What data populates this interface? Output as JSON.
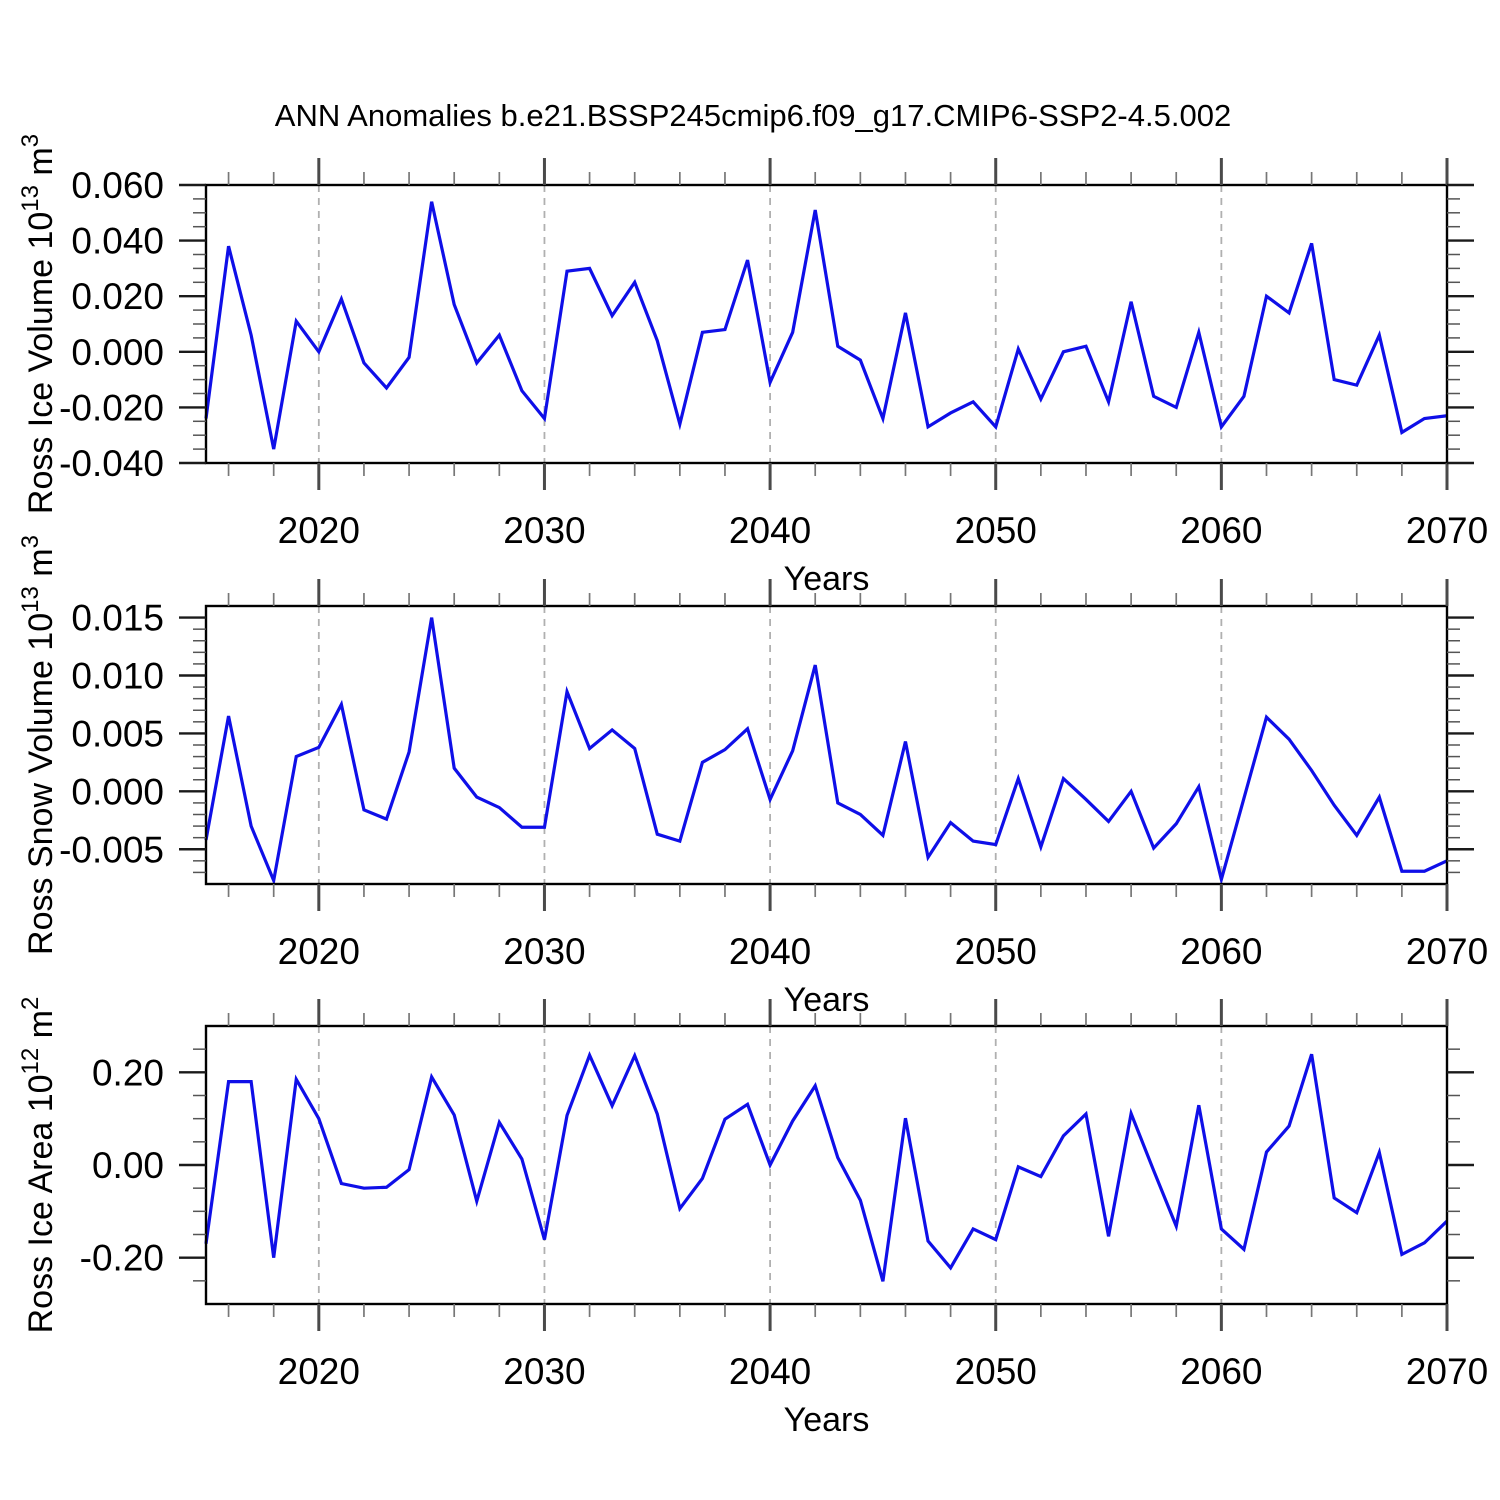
{
  "title": "ANN Anomalies b.e21.BSSP245cmip6.f09_g17.CMIP6-SSP2-4.5.002",
  "colors": {
    "line": "#0f0fe8",
    "frame": "#000000",
    "grid": "#b0b0b0",
    "x_major_tick": "#4a4a4a",
    "x_minor_tick": "#777777",
    "y_major_tick": "#1a1a1a",
    "y_minor_tick": "#555555",
    "text": "#000000"
  },
  "x_axis": {
    "label": "Years",
    "lim": [
      2015,
      2070
    ],
    "major_ticks": [
      2020,
      2030,
      2040,
      2050,
      2060,
      2070
    ],
    "major_tick_labels": [
      "2020",
      "2030",
      "2040",
      "2050",
      "2060",
      "2070"
    ],
    "minor_step_years": 2,
    "dashed_gridlines_at": [
      2020,
      2030,
      2040,
      2050,
      2060
    ]
  },
  "years": [
    2015,
    2016,
    2017,
    2018,
    2019,
    2020,
    2021,
    2022,
    2023,
    2024,
    2025,
    2026,
    2027,
    2028,
    2029,
    2030,
    2031,
    2032,
    2033,
    2034,
    2035,
    2036,
    2037,
    2038,
    2039,
    2040,
    2041,
    2042,
    2043,
    2044,
    2045,
    2046,
    2047,
    2048,
    2049,
    2050,
    2051,
    2052,
    2053,
    2054,
    2055,
    2056,
    2057,
    2058,
    2059,
    2060,
    2061,
    2062,
    2063,
    2064,
    2065,
    2066,
    2067,
    2068,
    2069,
    2070
  ],
  "chart_data": [
    {
      "type": "line",
      "panel": "top",
      "ylabel": "Ross Ice Volume 10^13 m^3",
      "ylabel_segments": [
        {
          "t": "Ross Ice Volume 10"
        },
        {
          "t": "13",
          "sup": true
        },
        {
          "t": " m"
        },
        {
          "t": "3",
          "sup": true
        }
      ],
      "ylim": [
        -0.04,
        0.06
      ],
      "yticks": [
        {
          "v": 0.06,
          "label": "0.060"
        },
        {
          "v": 0.04,
          "label": "0.040"
        },
        {
          "v": 0.02,
          "label": "0.020"
        },
        {
          "v": 0.0,
          "label": "0.000"
        },
        {
          "v": -0.02,
          "label": "-0.020"
        },
        {
          "v": -0.04,
          "label": "-0.040"
        }
      ],
      "y_minor_step": 0.005,
      "values": [
        -0.024,
        0.038,
        0.006,
        -0.035,
        0.011,
        0.0,
        0.019,
        -0.004,
        -0.013,
        -0.002,
        0.054,
        0.017,
        -0.004,
        0.006,
        -0.014,
        -0.024,
        0.029,
        0.03,
        0.013,
        0.025,
        0.004,
        -0.026,
        0.007,
        0.008,
        0.033,
        -0.011,
        0.007,
        0.051,
        0.002,
        -0.003,
        -0.024,
        0.014,
        -0.027,
        -0.022,
        -0.018,
        -0.027,
        0.001,
        -0.017,
        0.0,
        0.002,
        -0.018,
        0.018,
        -0.016,
        -0.02,
        0.007,
        -0.027,
        -0.016,
        0.02,
        0.014,
        0.039,
        -0.01,
        -0.012,
        0.006,
        -0.029,
        -0.024,
        -0.023
      ]
    },
    {
      "type": "line",
      "panel": "middle",
      "ylabel": "Ross Snow Volume 10^13 m^3",
      "ylabel_segments": [
        {
          "t": "Ross Snow Volume 10"
        },
        {
          "t": "13",
          "sup": true
        },
        {
          "t": " m"
        },
        {
          "t": "3",
          "sup": true
        }
      ],
      "ylim": [
        -0.008,
        0.016
      ],
      "yticks": [
        {
          "v": 0.015,
          "label": "0.015"
        },
        {
          "v": 0.01,
          "label": "0.010"
        },
        {
          "v": 0.005,
          "label": "0.005"
        },
        {
          "v": 0.0,
          "label": "0.000"
        },
        {
          "v": -0.005,
          "label": "-0.005"
        }
      ],
      "y_minor_step": 0.001,
      "values": [
        -0.0042,
        0.0065,
        -0.003,
        -0.0077,
        0.003,
        0.0038,
        0.0075,
        -0.0016,
        -0.0024,
        0.0034,
        0.015,
        0.002,
        -0.0005,
        -0.0014,
        -0.0031,
        -0.0031,
        0.0086,
        0.0037,
        0.0053,
        0.0037,
        -0.0037,
        -0.0043,
        0.0025,
        0.0036,
        0.0054,
        -0.0007,
        0.0035,
        0.0109,
        -0.001,
        -0.002,
        -0.0038,
        0.0043,
        -0.0057,
        -0.0027,
        -0.0043,
        -0.0046,
        0.0011,
        -0.0048,
        0.0011,
        -0.0007,
        -0.0026,
        0.0,
        -0.0049,
        -0.0028,
        0.0004,
        -0.0076,
        -0.0006,
        0.0064,
        0.0045,
        0.0018,
        -0.0012,
        -0.0038,
        -0.0005,
        -0.0069,
        -0.0069,
        -0.006
      ]
    },
    {
      "type": "line",
      "panel": "bottom",
      "ylabel": "Ross Ice Area 10^12 m^2",
      "ylabel_segments": [
        {
          "t": "Ross Ice Area 10"
        },
        {
          "t": "12",
          "sup": true
        },
        {
          "t": " m"
        },
        {
          "t": "2",
          "sup": true
        }
      ],
      "ylim": [
        -0.3,
        0.3
      ],
      "yticks": [
        {
          "v": 0.2,
          "label": "0.20"
        },
        {
          "v": 0.0,
          "label": "0.00"
        },
        {
          "v": -0.2,
          "label": "-0.20"
        }
      ],
      "y_minor_step": 0.05,
      "values": [
        -0.17,
        0.18,
        0.18,
        -0.2,
        0.185,
        0.1,
        -0.04,
        -0.05,
        -0.048,
        -0.01,
        0.19,
        0.108,
        -0.078,
        0.092,
        0.013,
        -0.161,
        0.107,
        0.237,
        0.128,
        0.236,
        0.11,
        -0.094,
        -0.029,
        0.099,
        0.131,
        0.0,
        0.095,
        0.171,
        0.016,
        -0.076,
        -0.251,
        0.101,
        -0.164,
        -0.222,
        -0.138,
        -0.161,
        -0.004,
        -0.025,
        0.063,
        0.11,
        -0.154,
        0.111,
        -0.012,
        -0.132,
        0.129,
        -0.138,
        -0.182,
        0.028,
        0.084,
        0.239,
        -0.071,
        -0.103,
        0.027,
        -0.193,
        -0.168,
        -0.121
      ]
    }
  ]
}
